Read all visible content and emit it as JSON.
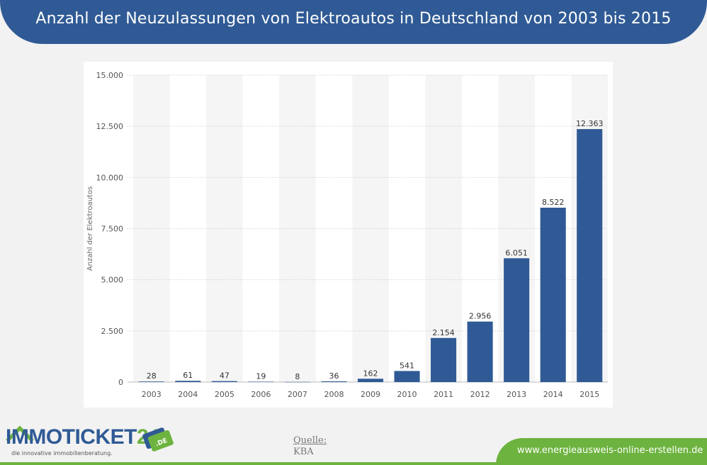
{
  "title": "Anzahl der Neuzulassungen von Elektroautos in Deutschland von 2003 bis 2015",
  "chart_data": {
    "type": "bar",
    "categories": [
      "2003",
      "2004",
      "2005",
      "2006",
      "2007",
      "2008",
      "2009",
      "2010",
      "2011",
      "2012",
      "2013",
      "2014",
      "2015"
    ],
    "values": [
      28,
      61,
      47,
      19,
      8,
      36,
      162,
      541,
      2154,
      2956,
      6051,
      8522,
      12363
    ],
    "value_labels": [
      "28",
      "61",
      "47",
      "19",
      "8",
      "36",
      "162",
      "541",
      "2.154",
      "2.956",
      "6.051",
      "8.522",
      "12.363"
    ],
    "ylabel": "Anzahl der Elektroautos",
    "ylim": [
      0,
      15000
    ],
    "yticks": [
      0,
      2500,
      5000,
      7500,
      10000,
      12500,
      15000
    ],
    "ytick_labels": [
      "0",
      "2.500",
      "5.000",
      "7.500",
      "10.000",
      "12.500",
      "15.000"
    ],
    "grid": true,
    "bar_color": "#2f5a95"
  },
  "source": {
    "heading": "Quelle:",
    "value": "KBA"
  },
  "logo": {
    "name_part1": "IMMOTICKET",
    "name_part2": "24",
    "badge": ".DE",
    "tagline": "die innovative immobilienberatung."
  },
  "footer": {
    "url": "www.energieausweis-online-erstellen.de"
  },
  "colors": {
    "primary_blue": "#2f5a95",
    "accent_green": "#6db33f"
  }
}
